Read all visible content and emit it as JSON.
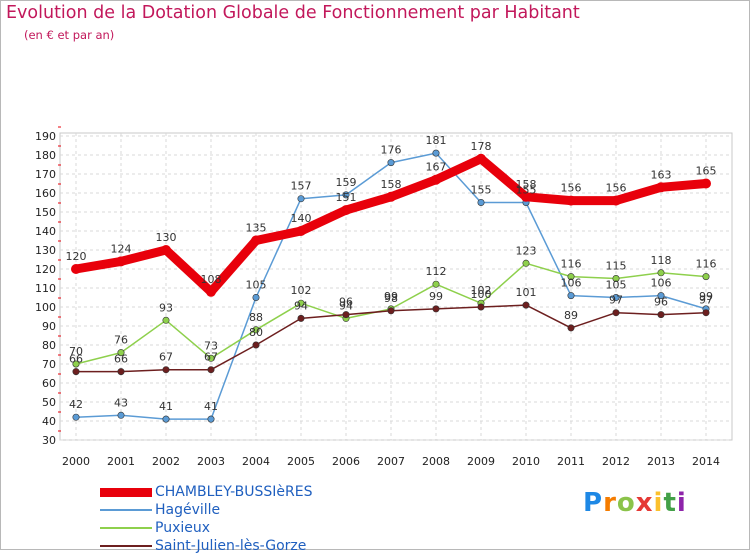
{
  "header": {
    "title": "Evolution de la Dotation Globale de Fonctionnement par Habitant",
    "subtitle": "(en € et par an)"
  },
  "logo": {
    "text": "Proxiti",
    "letters": [
      "P",
      "r",
      "o",
      "x",
      "i",
      "t",
      "i"
    ],
    "letter_colors": [
      "#1e88e5",
      "#f57c00",
      "#8bc34a",
      "#e53935",
      "#fbc02d",
      "#43a047",
      "#8e24aa"
    ]
  },
  "chart_data": {
    "type": "line",
    "categories": [
      "2000",
      "2001",
      "2002",
      "2003",
      "2004",
      "2005",
      "2006",
      "2007",
      "2008",
      "2009",
      "2010",
      "2011",
      "2012",
      "2013",
      "2014"
    ],
    "yticks": [
      30,
      40,
      50,
      60,
      70,
      80,
      90,
      100,
      110,
      120,
      130,
      140,
      150,
      160,
      170,
      180,
      190
    ],
    "ylim": [
      30,
      190
    ],
    "grid": true,
    "legend_position": "bottom-left",
    "series": [
      {
        "name": "CHAMBLEY-BUSSIèRES",
        "color": "#e8000b",
        "emphasis": true,
        "values": [
          120,
          124,
          130,
          108,
          135,
          140,
          151,
          158,
          167,
          178,
          158,
          156,
          156,
          163,
          165
        ],
        "labels": [
          "120",
          "124",
          "130",
          "108",
          "135",
          "140",
          "151",
          "158",
          "167",
          "178",
          "158",
          "156",
          "156",
          "163",
          "165"
        ]
      },
      {
        "name": "Hagéville",
        "color": "#5b9bd5",
        "emphasis": false,
        "values": [
          42,
          43,
          41,
          41,
          105,
          157,
          159,
          176,
          181,
          155,
          155,
          106,
          105,
          106,
          99
        ],
        "labels": [
          "42",
          "43",
          "41",
          "41",
          "105",
          "157",
          "159",
          "176",
          "181",
          "155",
          "155",
          "106",
          "105",
          "106",
          "99"
        ]
      },
      {
        "name": "Puxieux",
        "color": "#8ed04c",
        "emphasis": false,
        "values": [
          70,
          76,
          93,
          73,
          88,
          102,
          94,
          99,
          112,
          102,
          123,
          116,
          115,
          118,
          116
        ],
        "labels": [
          "70",
          "76",
          "93",
          "73",
          "88",
          "102",
          "94",
          "99",
          "112",
          "102",
          "123",
          "116",
          "115",
          "118",
          "116"
        ]
      },
      {
        "name": "Saint-Julien-lès-Gorze",
        "color": "#6d1f1f",
        "emphasis": false,
        "values": [
          66,
          66,
          67,
          67,
          80,
          94,
          96,
          98,
          99,
          100,
          101,
          89,
          97,
          96,
          97
        ],
        "labels": [
          "66",
          "66",
          "67",
          "67",
          "80",
          "94",
          "96",
          "98",
          "99",
          "100",
          "101",
          "89",
          "97",
          "96",
          "97"
        ]
      }
    ]
  }
}
